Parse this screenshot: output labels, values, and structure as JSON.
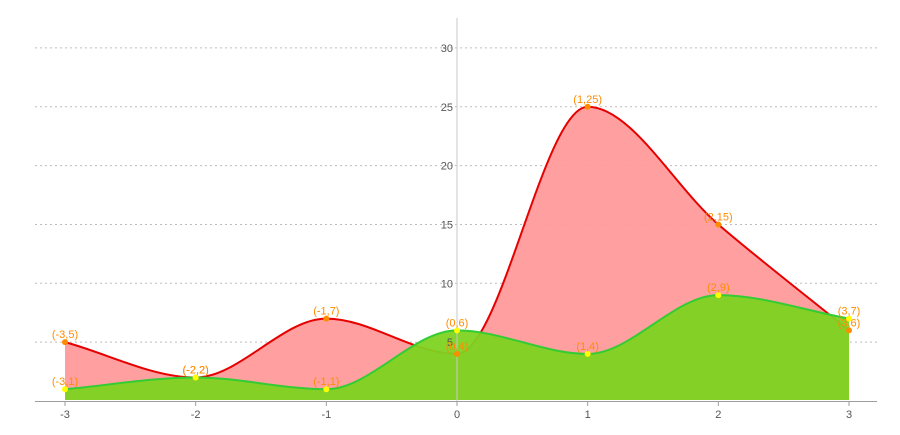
{
  "chart_data": {
    "type": "area",
    "title": "",
    "xlabel": "",
    "ylabel": "",
    "x": [
      -3,
      -2,
      -1,
      0,
      1,
      2,
      3
    ],
    "xlim": [
      -3,
      3
    ],
    "ylim": [
      0,
      32
    ],
    "x_ticks": [
      "-3",
      "-2",
      "-1",
      "0",
      "1",
      "2",
      "3"
    ],
    "y_ticks": [
      "5",
      "10",
      "15",
      "20",
      "25",
      "30"
    ],
    "grid": {
      "horizontal": true,
      "vertical": false,
      "style": "dotted"
    },
    "legend": "none",
    "series": [
      {
        "color_fill": "#ff9a9a",
        "color_line": "#e60000",
        "marker_color": "#ff8c00",
        "values": [
          5,
          2,
          7,
          4,
          25,
          15,
          6
        ],
        "point_labels": [
          "(-3,5)",
          "(-2,2)",
          "(-1,7)",
          "(0,4)",
          "(1,25)",
          "(2,15)",
          "(3,6)"
        ]
      },
      {
        "color_fill": "#7ed321",
        "color_line": "#33cc33",
        "marker_color": "#ffff00",
        "values": [
          1,
          2,
          1,
          6,
          4,
          9,
          7
        ],
        "point_labels": [
          "(-3,1)",
          "(-2,2)",
          "(-1,1)",
          "(0,6)",
          "(1,4)",
          "(2,9)",
          "(3,7)"
        ]
      }
    ],
    "label_color": "#ff8c00"
  }
}
